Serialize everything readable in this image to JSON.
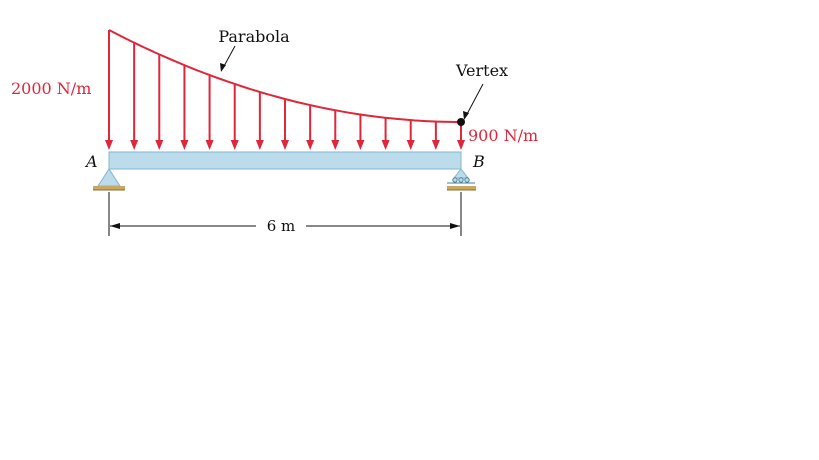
{
  "labels": {
    "parabola": "Parabola",
    "vertex": "Vertex",
    "load_left": "2000 N/m",
    "load_right": "900 N/m",
    "support_a": "A",
    "support_b": "B",
    "span": "6 m"
  },
  "load": {
    "left_value": 2000,
    "right_value": 900,
    "unit": "N/m",
    "shape": "parabola",
    "vertex_at": "B",
    "arrow_count": 15
  },
  "beam": {
    "length": 6,
    "unit": "m",
    "support_a_type": "pin",
    "support_b_type": "roller"
  },
  "colors": {
    "load": "#e0263a",
    "beam_fill": "#bcdcec",
    "beam_edge": "#7fb6d0",
    "support": "#bcdcec",
    "ground": "#c8a862",
    "text": "#111111",
    "vertex_dot": "#111111"
  }
}
